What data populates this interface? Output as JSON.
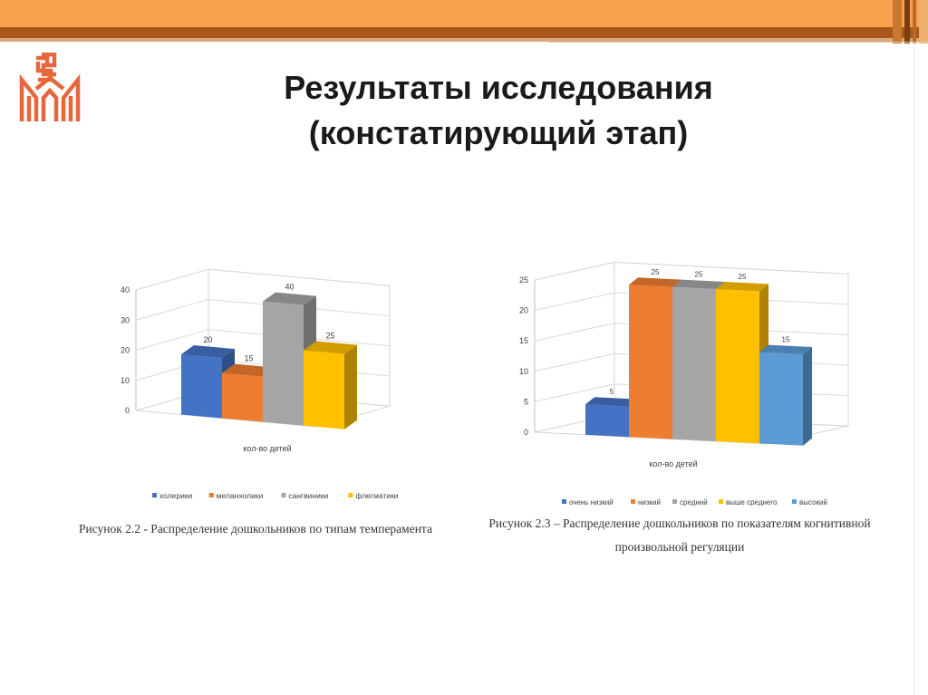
{
  "slide": {
    "title_line1": "Результаты исследования",
    "title_line2": "(констатирующий этап)"
  },
  "theme": {
    "accent_orange": "#f9a04c",
    "accent_brown": "#a8581b",
    "logo_color": "#e8663c"
  },
  "figures": {
    "left_caption": "Рисунок 2.2 - Распределение дошкольников по типам темперамента",
    "right_caption_line1": "Рисунок 2.3 – Распределение дошкольников по показателям когнитивной",
    "right_caption_line2": "произвольной регуляции"
  },
  "chart_data": [
    {
      "type": "bar",
      "style": "3d-column",
      "xlabel": "кол-во детей",
      "ylim": [
        0,
        40
      ],
      "yticks": [
        0,
        10,
        20,
        30,
        40
      ],
      "grid": true,
      "legend_position": "bottom",
      "series": [
        {
          "name": "холерики",
          "values": [
            20
          ],
          "color": "#4472c4"
        },
        {
          "name": "меланхолики",
          "values": [
            15
          ],
          "color": "#ed7d31"
        },
        {
          "name": "сангвиники",
          "values": [
            40
          ],
          "color": "#a5a5a5"
        },
        {
          "name": "флегматики",
          "values": [
            25
          ],
          "color": "#ffc000"
        }
      ]
    },
    {
      "type": "bar",
      "style": "3d-column",
      "xlabel": "кол-во детей",
      "ylim": [
        0,
        25
      ],
      "yticks": [
        0,
        5,
        10,
        15,
        20,
        25
      ],
      "grid": true,
      "legend_position": "bottom",
      "series": [
        {
          "name": "очень низкий",
          "values": [
            5
          ],
          "color": "#4472c4"
        },
        {
          "name": "низкий",
          "values": [
            25
          ],
          "color": "#ed7d31"
        },
        {
          "name": "средний",
          "values": [
            25
          ],
          "color": "#a5a5a5"
        },
        {
          "name": "выше среднего",
          "values": [
            25
          ],
          "color": "#ffc000"
        },
        {
          "name": "высокий",
          "values": [
            15
          ],
          "color": "#5b9bd5"
        }
      ]
    }
  ]
}
